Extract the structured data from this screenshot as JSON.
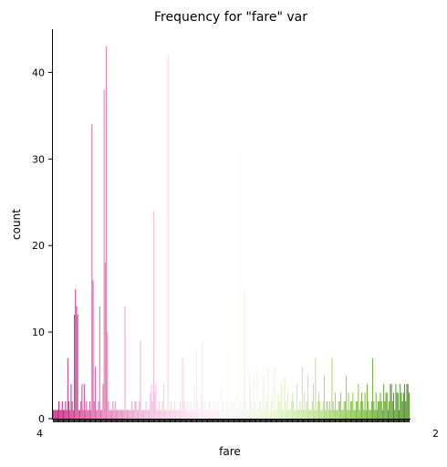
{
  "chart_data": {
    "type": "bar",
    "title": "Frequency for \"fare\" var",
    "xlabel": "fare",
    "ylabel": "count",
    "ylim": [
      0,
      45
    ],
    "yticks": [
      0,
      10,
      20,
      30,
      40
    ],
    "grid": false,
    "legend": false,
    "palette": "PiYG",
    "x_tick_label_start": "4",
    "x_tick_label_end": "2",
    "counts": [
      1,
      1,
      1,
      1,
      1,
      2,
      1,
      1,
      2,
      1,
      1,
      2,
      1,
      7,
      2,
      1,
      4,
      2,
      1,
      12,
      15,
      13,
      12,
      1,
      1,
      2,
      4,
      1,
      4,
      1,
      2,
      1,
      1,
      2,
      1,
      34,
      16,
      2,
      6,
      1,
      1,
      2,
      13,
      1,
      1,
      4,
      38,
      18,
      43,
      10,
      2,
      1,
      1,
      1,
      2,
      1,
      2,
      1,
      1,
      1,
      1,
      1,
      1,
      1,
      1,
      13,
      1,
      1,
      1,
      1,
      1,
      2,
      1,
      1,
      2,
      2,
      1,
      1,
      2,
      9,
      1,
      1,
      1,
      1,
      2,
      1,
      1,
      1,
      3,
      4,
      2,
      24,
      3,
      4,
      1,
      1,
      2,
      1,
      1,
      2,
      4,
      1,
      1,
      1,
      42,
      1,
      1,
      2,
      1,
      1,
      2,
      1,
      1,
      1,
      1,
      2,
      1,
      7,
      7,
      2,
      1,
      1,
      2,
      1,
      1,
      2,
      1,
      1,
      4,
      1,
      8,
      2,
      1,
      1,
      3,
      9,
      2,
      1,
      2,
      1,
      1,
      2,
      2,
      1,
      1,
      1,
      2,
      1,
      2,
      1,
      2,
      1,
      1,
      4,
      2,
      1,
      1,
      2,
      8,
      1,
      1,
      2,
      2,
      1,
      1,
      2,
      3,
      1,
      1,
      31,
      2,
      1,
      2,
      5,
      15,
      2,
      1,
      1,
      6,
      4,
      2,
      1,
      5,
      2,
      1,
      6,
      1,
      2,
      2,
      1,
      3,
      5,
      1,
      2,
      2,
      6,
      1,
      1,
      2,
      3,
      1,
      6,
      1,
      1,
      3,
      2,
      2,
      4,
      1,
      1,
      5,
      2,
      1,
      3,
      1,
      1,
      2,
      3,
      2,
      1,
      1,
      4,
      1,
      1,
      2,
      1,
      6,
      1,
      3,
      1,
      2,
      5,
      1,
      1,
      1,
      2,
      4,
      1,
      7,
      1,
      2,
      3,
      2,
      1,
      1,
      2,
      5,
      1,
      2,
      2,
      1,
      2,
      1,
      7,
      2,
      1,
      3,
      1,
      1,
      2,
      2,
      3,
      1,
      1,
      2,
      2,
      5,
      1,
      3,
      1,
      2,
      2,
      3,
      1,
      1,
      2,
      2,
      4,
      1,
      2,
      3,
      2,
      1,
      3,
      1,
      4,
      2,
      1,
      1,
      2,
      7,
      2,
      1,
      3,
      1,
      2,
      2,
      3,
      2,
      1,
      4,
      2,
      3,
      3,
      1,
      2,
      4,
      4,
      2,
      3,
      1,
      4,
      3,
      3,
      1,
      4,
      3,
      2,
      3,
      4,
      2,
      4,
      4,
      3
    ]
  }
}
